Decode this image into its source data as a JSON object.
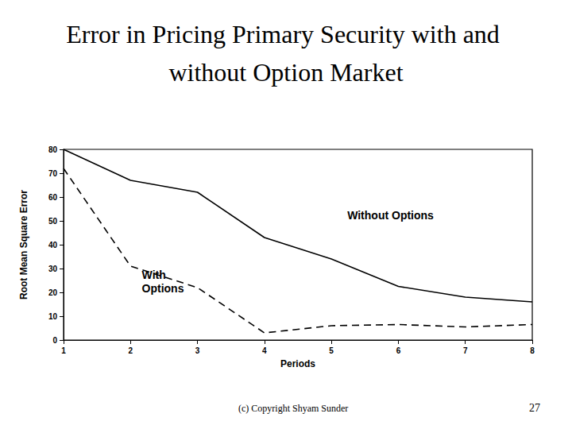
{
  "chart_data": {
    "type": "line",
    "title": "Error in Pricing Primary Security with and without Option Market",
    "x_label": "Periods",
    "y_label": "Root Mean Square Error",
    "x": [
      1,
      2,
      3,
      4,
      5,
      6,
      7,
      8
    ],
    "series": [
      {
        "name": "Without Options",
        "color": "#000000",
        "line_style": "solid",
        "marker": "none",
        "values": [
          80,
          67,
          62,
          43,
          34,
          22.5,
          18,
          16
        ]
      },
      {
        "name": "With Options",
        "color": "#000000",
        "line_style": "dashed",
        "marker": "none",
        "values": [
          72,
          31,
          22,
          3,
          6,
          6.5,
          5.5,
          6.5
        ]
      }
    ],
    "xlim": [
      1,
      8
    ],
    "xticks": [
      1,
      2,
      3,
      4,
      5,
      6,
      7,
      8
    ],
    "ylim": [
      0,
      80
    ],
    "yticks": [
      0,
      10,
      20,
      30,
      40,
      50,
      60,
      70,
      80
    ],
    "grid": false
  },
  "slide": {
    "footer": "(c) Copyright Shyam Sunder",
    "page_number": "27"
  }
}
